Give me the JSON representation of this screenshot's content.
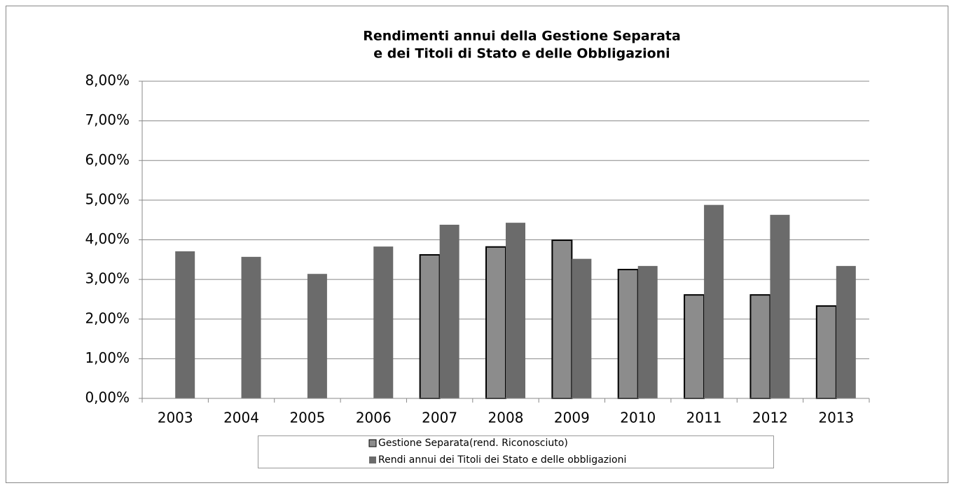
{
  "chart_data": {
    "type": "bar",
    "title": [
      "Rendimenti annui della Gestione Separata",
      "e dei Titoli di Stato e delle Obbligazioni"
    ],
    "categories": [
      "2003",
      "2004",
      "2005",
      "2006",
      "2007",
      "2008",
      "2009",
      "2010",
      "2011",
      "2012",
      "2013"
    ],
    "series": [
      {
        "name": "Gestione Separata(rend. Riconosciuto)",
        "color": "#8c8c8c",
        "values": [
          null,
          null,
          null,
          null,
          3.62,
          3.82,
          3.99,
          3.25,
          2.61,
          2.61,
          2.33
        ]
      },
      {
        "name": "Rendi annui dei Titoli dei Stato e delle obbligazioni",
        "color": "#6b6b6b",
        "values": [
          3.71,
          3.57,
          3.14,
          3.83,
          4.38,
          4.43,
          3.52,
          3.34,
          4.88,
          4.63,
          3.34
        ]
      }
    ],
    "ylim": [
      0,
      8
    ],
    "yticks": [
      {
        "value": 0,
        "label": "0,00%"
      },
      {
        "value": 1,
        "label": "1,00%"
      },
      {
        "value": 2,
        "label": "2,00%"
      },
      {
        "value": 3,
        "label": "3,00%"
      },
      {
        "value": 4,
        "label": "4,00%"
      },
      {
        "value": 5,
        "label": "5,00%"
      },
      {
        "value": 6,
        "label": "6,00%"
      },
      {
        "value": 7,
        "label": "7,00%"
      },
      {
        "value": 8,
        "label": "8,00%"
      }
    ],
    "grid": true
  }
}
